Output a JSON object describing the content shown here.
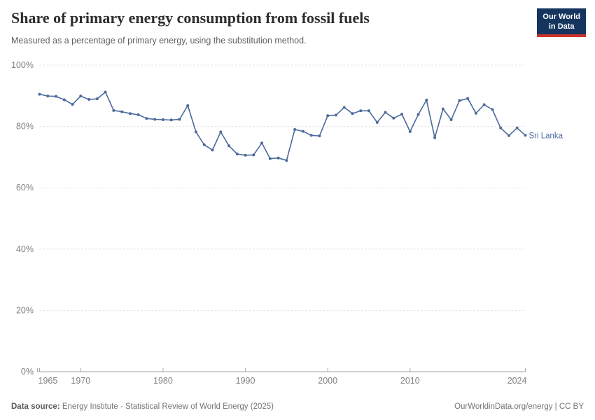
{
  "header": {
    "title": "Share of primary energy consumption from fossil fuels",
    "subtitle": "Measured as a percentage of primary energy, using the substitution method.",
    "logo": {
      "line1": "Our World",
      "line2": "in Data"
    }
  },
  "chart_data": {
    "type": "line",
    "title": "Share of primary energy consumption from fossil fuels",
    "entity_label": "Sri Lanka",
    "x": [
      1965,
      1966,
      1967,
      1968,
      1969,
      1970,
      1971,
      1972,
      1973,
      1974,
      1975,
      1976,
      1977,
      1978,
      1979,
      1980,
      1981,
      1982,
      1983,
      1984,
      1985,
      1986,
      1987,
      1988,
      1989,
      1990,
      1991,
      1992,
      1993,
      1994,
      1995,
      1996,
      1997,
      1998,
      1999,
      2000,
      2001,
      2002,
      2003,
      2004,
      2005,
      2006,
      2007,
      2008,
      2009,
      2010,
      2011,
      2012,
      2013,
      2014,
      2015,
      2016,
      2017,
      2018,
      2019,
      2020,
      2021,
      2022,
      2023,
      2024
    ],
    "series": [
      {
        "name": "Sri Lanka",
        "values": [
          90.5,
          89.9,
          89.8,
          88.7,
          87.2,
          89.9,
          88.8,
          89.0,
          91.2,
          85.2,
          84.8,
          84.2,
          83.8,
          82.6,
          82.3,
          82.2,
          82.1,
          82.3,
          86.8,
          78.2,
          74.0,
          72.3,
          78.2,
          73.7,
          71.0,
          70.6,
          70.7,
          74.6,
          69.5,
          69.7,
          68.9,
          79.0,
          78.4,
          77.1,
          76.9,
          83.5,
          83.7,
          86.2,
          84.2,
          85.1,
          85.1,
          81.3,
          84.6,
          82.7,
          84.0,
          78.3,
          83.9,
          88.6,
          76.3,
          85.7,
          82.2,
          88.4,
          89.1,
          84.3,
          87.1,
          85.5,
          79.5,
          77.0,
          79.5,
          77.1
        ]
      }
    ],
    "xlabel": "",
    "ylabel": "",
    "ylim": [
      0,
      100
    ],
    "xlim": [
      1965,
      2024
    ],
    "yticks": [
      0,
      20,
      40,
      60,
      80,
      100
    ],
    "ytick_suffix": "%",
    "xticks": [
      1965,
      1970,
      1980,
      1990,
      2000,
      2010,
      2024
    ],
    "grid": "horizontal-dashed",
    "legend_position": "end-of-line-label",
    "line_color": "#4C6A9C",
    "grid_color": "#dcdcdc",
    "axis_color": "#a6a6a6",
    "tick_label_color": "#818181"
  },
  "footer": {
    "source_label": "Data source:",
    "source_text": " Energy Institute - Statistical Review of World Energy (2025)",
    "link_text": "OurWorldinData.org/energy | CC BY"
  }
}
